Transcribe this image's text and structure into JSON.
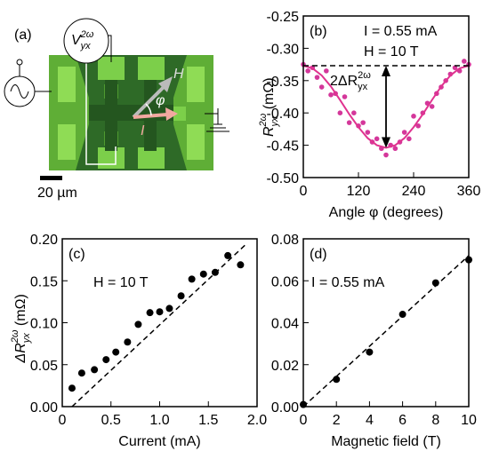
{
  "panel_a": {
    "label": "(a)",
    "voltage": {
      "main": "V",
      "sub": "yx",
      "sup": "2ω"
    },
    "field_arrow": "H",
    "angle": "φ",
    "current_arrow": "I",
    "scale_bar": "20 µm"
  },
  "chart_data": [
    {
      "type": "scatter",
      "panel": "(b)",
      "annotations": [
        "I = 0.55 mA",
        "H = 10 T"
      ],
      "arrow_label": {
        "main": "2ΔR",
        "sub": "yx",
        "sup": "2ω"
      },
      "xlabel": "Angle φ (degrees)",
      "ylabel": {
        "main": "R",
        "sub": "yx",
        "sup": "2ω",
        "rest": " (mΩ)"
      },
      "xlim": [
        0,
        360
      ],
      "ylim": [
        -0.5,
        -0.25
      ],
      "xticks": [
        0,
        120,
        240,
        360
      ],
      "yticks": [
        {
          "value": -0.5,
          "label": "-0.50"
        },
        -0.45,
        {
          "value": -0.4,
          "label": "-0.40"
        },
        -0.35,
        {
          "value": -0.3,
          "label": "-0.30"
        },
        -0.25
      ],
      "reference_line": -0.327,
      "series": [
        {
          "style": "markers",
          "color": "#d4379a",
          "x": [
            0,
            10,
            20,
            30,
            40,
            50,
            60,
            70,
            80,
            90,
            100,
            110,
            120,
            130,
            140,
            150,
            160,
            170,
            180,
            190,
            200,
            210,
            220,
            230,
            240,
            250,
            260,
            270,
            280,
            290,
            300,
            310,
            320,
            330,
            340,
            350,
            360
          ],
          "values": [
            -0.325,
            -0.335,
            -0.33,
            -0.345,
            -0.36,
            -0.335,
            -0.372,
            -0.37,
            -0.4,
            -0.375,
            -0.415,
            -0.4,
            -0.42,
            -0.415,
            -0.43,
            -0.445,
            -0.44,
            -0.455,
            -0.465,
            -0.45,
            -0.455,
            -0.445,
            -0.43,
            -0.44,
            -0.405,
            -0.42,
            -0.4,
            -0.385,
            -0.39,
            -0.37,
            -0.36,
            -0.35,
            -0.34,
            -0.33,
            -0.335,
            -0.32,
            -0.325
          ]
        },
        {
          "style": "line",
          "color": "#e0338f",
          "x": [
            0,
            20,
            40,
            60,
            80,
            100,
            120,
            140,
            160,
            180,
            200,
            220,
            240,
            260,
            280,
            300,
            320,
            340,
            360
          ],
          "values": [
            -0.327,
            -0.331,
            -0.342,
            -0.359,
            -0.38,
            -0.402,
            -0.422,
            -0.439,
            -0.45,
            -0.454,
            -0.45,
            -0.439,
            -0.422,
            -0.402,
            -0.38,
            -0.359,
            -0.342,
            -0.331,
            -0.327
          ]
        }
      ]
    },
    {
      "type": "scatter",
      "panel": "(c)",
      "annotations": [
        "H = 10 T"
      ],
      "xlabel": "Current (mA)",
      "ylabel": {
        "main": "ΔR",
        "sub": "yx",
        "sup": "2ω",
        "rest": " (mΩ)"
      },
      "xlim": [
        0,
        2
      ],
      "ylim": [
        0,
        0.2
      ],
      "xticks": [
        0,
        0.5,
        {
          "value": 1,
          "label": "1.0"
        },
        1.5,
        {
          "value": 2,
          "label": "2.0"
        }
      ],
      "yticks": [
        {
          "value": 0,
          "label": "0.00"
        },
        0.05,
        {
          "value": 0.1,
          "label": "0.10"
        },
        0.15,
        {
          "value": 0.2,
          "label": "0.20"
        }
      ],
      "series": [
        {
          "style": "markers",
          "color": "#000000",
          "x": [
            0.1,
            0.2,
            0.33,
            0.45,
            0.55,
            0.67,
            0.78,
            0.9,
            1.0,
            1.1,
            1.22,
            1.33,
            1.45,
            1.57,
            1.7,
            1.83
          ],
          "values": [
            0.022,
            0.04,
            0.044,
            0.056,
            0.065,
            0.077,
            0.098,
            0.112,
            0.113,
            0.117,
            0.132,
            0.152,
            0.158,
            0.16,
            0.18,
            0.169
          ]
        },
        {
          "style": "dashed",
          "color": "#000000",
          "x": [
            0.1,
            1.9
          ],
          "values": [
            0,
            0.195
          ]
        }
      ]
    },
    {
      "type": "scatter",
      "panel": "(d)",
      "annotations": [
        "I = 0.55 mA"
      ],
      "xlabel": "Magnetic field (T)",
      "ylabel": null,
      "xlim": [
        0,
        10
      ],
      "ylim": [
        0,
        0.08
      ],
      "xticks": [
        0,
        2,
        4,
        6,
        8,
        10
      ],
      "yticks": [
        {
          "value": 0,
          "label": "0.00"
        },
        0.02,
        0.04,
        0.06,
        0.08
      ],
      "series": [
        {
          "style": "markers",
          "color": "#000000",
          "x": [
            0,
            2,
            4,
            6,
            8,
            10
          ],
          "values": [
            0.001,
            0.013,
            0.026,
            0.044,
            0.059,
            0.07
          ]
        },
        {
          "style": "dashed",
          "color": "#000000",
          "x": [
            0,
            10
          ],
          "values": [
            0,
            0.072
          ]
        }
      ]
    }
  ]
}
